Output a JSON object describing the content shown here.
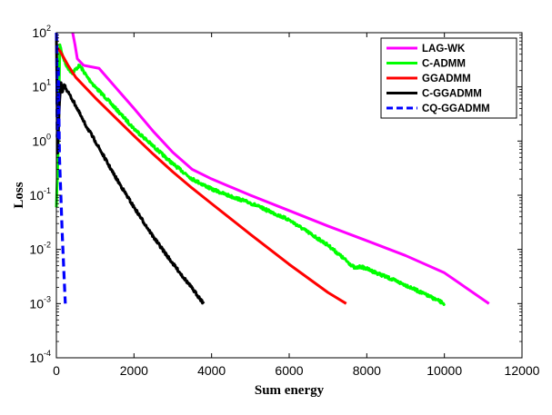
{
  "chart_data": {
    "type": "line",
    "title": "",
    "xlabel": "Sum energy",
    "ylabel": "Loss",
    "xlim": [
      0,
      12000
    ],
    "ylim": [
      0.0001,
      100
    ],
    "yscale": "log",
    "grid": false,
    "legend_position": "top-right",
    "x_ticks": [
      "0",
      "2000",
      "4000",
      "6000",
      "8000",
      "10000",
      "12000"
    ],
    "y_ticks": [
      {
        "base": "10",
        "exp": "-4"
      },
      {
        "base": "10",
        "exp": "-3"
      },
      {
        "base": "10",
        "exp": "-2"
      },
      {
        "base": "10",
        "exp": "-1"
      },
      {
        "base": "10",
        "exp": "0"
      },
      {
        "base": "10",
        "exp": "1"
      },
      {
        "base": "10",
        "exp": "2"
      }
    ],
    "series": [
      {
        "name": "LAG-WK",
        "color": "#ff00ff",
        "dash": "solid",
        "x": [
          420,
          480,
          540,
          700,
          1100,
          1300,
          1600,
          2000,
          2500,
          3000,
          3500,
          4000,
          5000,
          6000,
          7000,
          8000,
          9000,
          10000,
          11150
        ],
        "y": [
          100,
          60,
          33,
          25,
          22,
          15,
          8.5,
          4.0,
          1.5,
          0.62,
          0.3,
          0.2,
          0.1,
          0.052,
          0.027,
          0.0145,
          0.0077,
          0.0037,
          0.001
        ]
      },
      {
        "name": "C-ADMM",
        "color": "#00ff00",
        "dash": "solid",
        "noise": true,
        "x": [
          0,
          40,
          70,
          90,
          150,
          250,
          400,
          600,
          800,
          1000,
          1300,
          1600,
          2000,
          2500,
          3000,
          3500,
          4000,
          4500,
          5000,
          6000,
          7000,
          7700,
          7850,
          8000,
          9000,
          10000
        ],
        "y": [
          0.06,
          0.5,
          8,
          60,
          40,
          25,
          18,
          25,
          15,
          10,
          6,
          3.5,
          1.7,
          0.8,
          0.38,
          0.2,
          0.13,
          0.095,
          0.072,
          0.035,
          0.012,
          0.0045,
          0.0048,
          0.0044,
          0.0022,
          0.001
        ]
      },
      {
        "name": "GGADMM",
        "color": "#ff0000",
        "dash": "solid",
        "x": [
          0,
          100,
          300,
          500,
          1000,
          1500,
          2000,
          2500,
          3000,
          3500,
          4000,
          5000,
          6000,
          7000,
          7470
        ],
        "y": [
          55,
          45,
          25,
          15,
          6.3,
          2.8,
          1.25,
          0.57,
          0.27,
          0.135,
          0.07,
          0.019,
          0.0053,
          0.0016,
          0.001
        ]
      },
      {
        "name": "C-GGADMM",
        "color": "#000000",
        "dash": "solid",
        "noise": true,
        "x": [
          0,
          30,
          80,
          120,
          150,
          200,
          300,
          500,
          700,
          1000,
          1500,
          2000,
          2500,
          3000,
          3500,
          3800
        ],
        "y": [
          100,
          0.6,
          5,
          12,
          8,
          11,
          8,
          4.5,
          2.3,
          1.0,
          0.23,
          0.06,
          0.017,
          0.0055,
          0.0019,
          0.001
        ]
      },
      {
        "name": "CQ-GGADMM",
        "color": "#0000ff",
        "dash": "dashed",
        "x": [
          0,
          10,
          20,
          35,
          50,
          80,
          100,
          150,
          200,
          230
        ],
        "y": [
          100,
          60,
          1.2,
          2,
          25,
          0.5,
          0.2,
          0.02,
          0.003,
          0.001
        ]
      }
    ]
  }
}
